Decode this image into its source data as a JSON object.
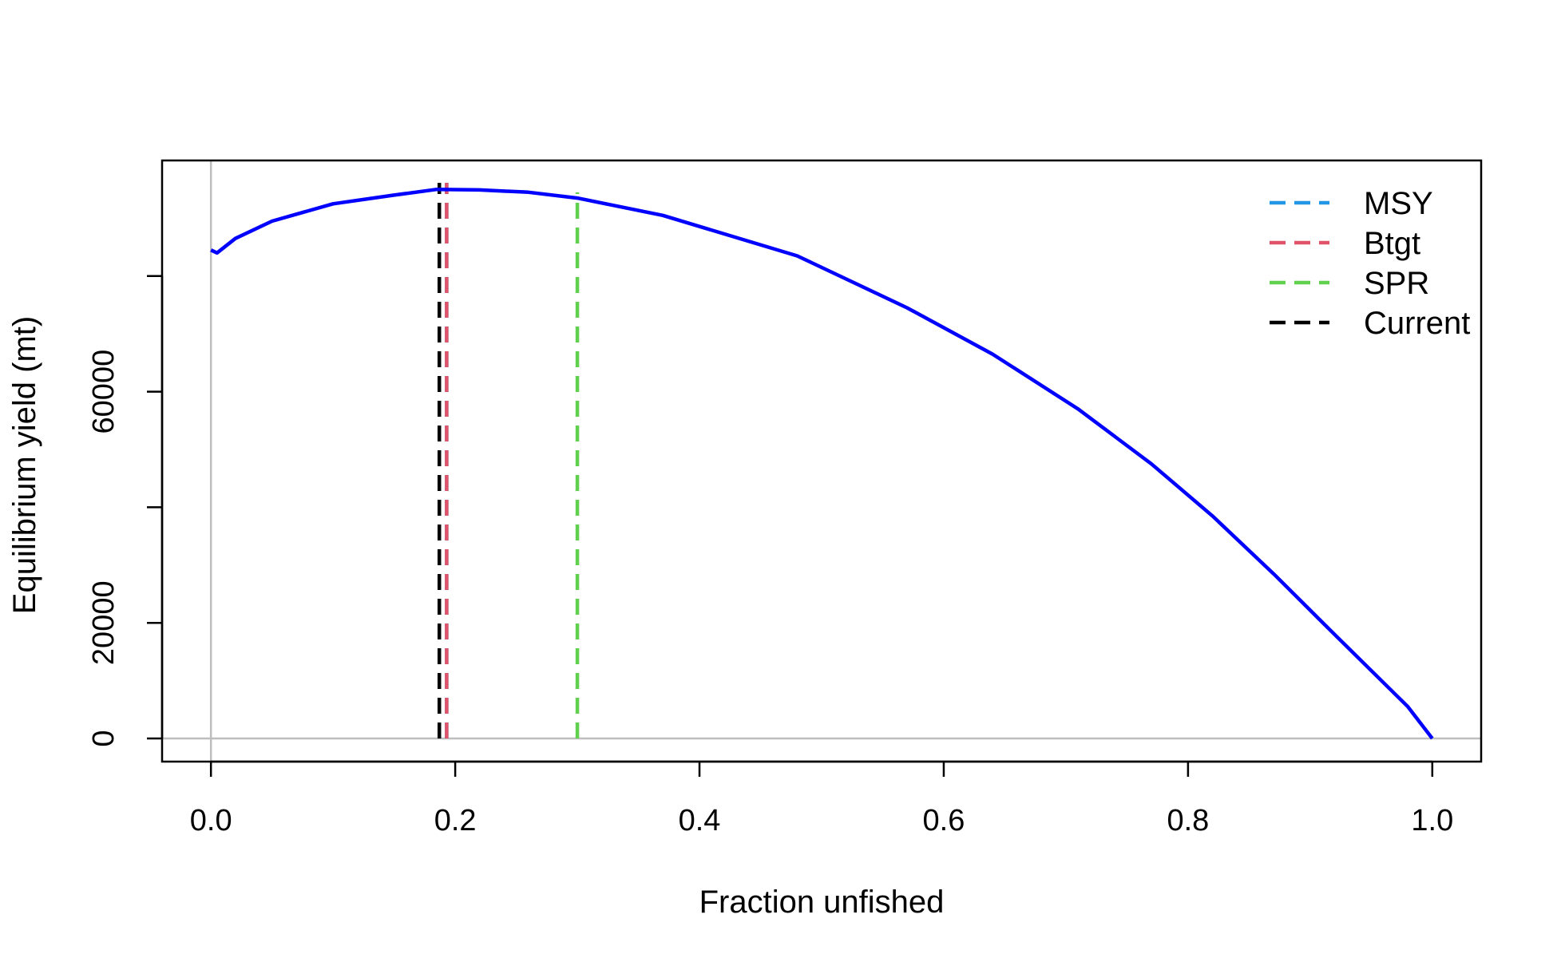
{
  "chart_data": {
    "type": "line",
    "title": "",
    "xlabel": "Fraction unfished",
    "ylabel": "Equilibrium yield (mt)",
    "xlim": [
      -0.04,
      1.04
    ],
    "ylim": [
      -4000,
      100000
    ],
    "x_ticks": [
      0.0,
      0.2,
      0.4,
      0.6,
      0.8,
      1.0
    ],
    "x_tick_labels": [
      "0.0",
      "0.2",
      "0.4",
      "0.6",
      "0.8",
      "1.0"
    ],
    "y_ticks": [
      0,
      20000,
      40000,
      60000,
      80000
    ],
    "y_tick_labels": [
      "0",
      "20000",
      "",
      "60000",
      ""
    ],
    "grid": false,
    "reference_lines": {
      "horizontal_y": 0,
      "vertical_x": 0,
      "color": "#bebebe"
    },
    "series": [
      {
        "color": "#0000ff",
        "x": [
          0.0,
          0.005,
          0.02,
          0.05,
          0.1,
          0.15,
          0.185,
          0.22,
          0.26,
          0.3,
          0.37,
          0.48,
          0.57,
          0.64,
          0.71,
          0.77,
          0.82,
          0.87,
          0.92,
          0.98,
          1.0
        ],
        "y": [
          84500,
          84000,
          86500,
          89500,
          92500,
          94000,
          95000,
          94900,
          94500,
          93500,
          90500,
          83500,
          74500,
          66500,
          57000,
          47500,
          38500,
          28500,
          18000,
          5500,
          0
        ]
      }
    ],
    "vlines": [
      {
        "name": "MSY",
        "x": 0.193,
        "color": "#2297e6"
      },
      {
        "name": "Btgt",
        "x": 0.193,
        "color": "#df536b"
      },
      {
        "name": "SPR",
        "x": 0.3,
        "color": "#61d04f"
      },
      {
        "name": "Current",
        "x": 0.187,
        "color": "#000000"
      }
    ],
    "legend": {
      "position": "top-right",
      "entries": [
        {
          "name": "MSY",
          "color": "#2297e6"
        },
        {
          "name": "Btgt",
          "color": "#df536b"
        },
        {
          "name": "SPR",
          "color": "#61d04f"
        },
        {
          "name": "Current",
          "color": "#000000"
        }
      ]
    }
  }
}
